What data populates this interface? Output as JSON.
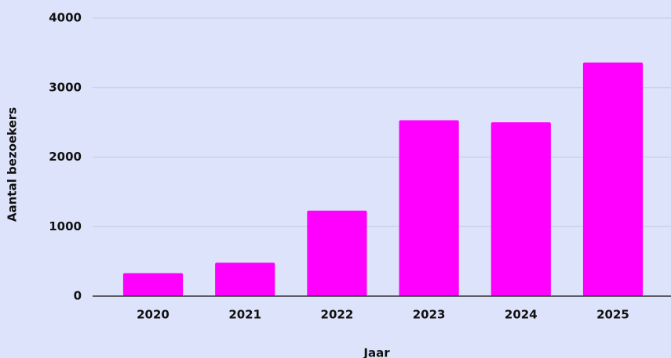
{
  "chart_data": {
    "type": "bar",
    "x_label": "Jaar",
    "y_label": "Aantal bezoekers",
    "categories": [
      "2020",
      "2021",
      "2022",
      "2023",
      "2024",
      "2025"
    ],
    "values": [
      330,
      480,
      1230,
      2530,
      2500,
      3360
    ],
    "color": "#ff00ff",
    "ylim": [
      0,
      4000
    ],
    "yticks": [
      0,
      1000,
      2000,
      3000,
      4000
    ],
    "grid": true
  }
}
